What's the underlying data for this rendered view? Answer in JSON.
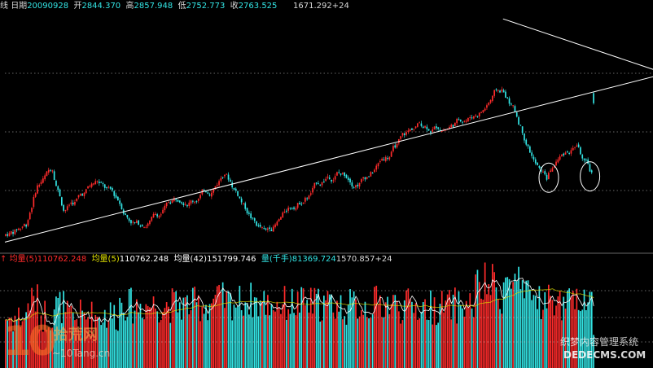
{
  "header": {
    "prefix": "线",
    "date_label": "日期",
    "date": "20090928",
    "open_label": "开",
    "open": "2844.370",
    "high_label": "高",
    "high": "2857.948",
    "low_label": "低",
    "low": "2752.773",
    "close_label": "收",
    "close": "2763.525",
    "peak_readout": "1671.292+24"
  },
  "volume_header": {
    "mark": "↑",
    "ma5_red_label": "均量(5)",
    "ma5_red": "110762.248",
    "ma5_label": "均量(5)",
    "ma5": "110762.248",
    "ma42_label": "均量(42)",
    "ma42": "151799.746",
    "vol_label": "量(千手)",
    "vol": "81369.724",
    "extra": "1570.857+24"
  },
  "colors": {
    "background": "#000000",
    "up": "#ff2b2b",
    "down": "#33e5e5",
    "trendline": "#ffffff",
    "grid": "#cccccc",
    "header_text": "#d9d9d9",
    "volume_ma5": "#ffffff",
    "volume_ma42": "#e0e000",
    "volume_vol": "#33e5e5"
  },
  "watermarks": {
    "left_big": "10",
    "left_cn": "拾荒网",
    "left_url": "~10Tang.cn",
    "right_cn": "织梦内容管理系统",
    "right_url": "DEDECMS.COM"
  },
  "chart_data": {
    "type": "candlestick",
    "title": "",
    "xlabel": "",
    "ylabel": "",
    "last_bar": {
      "date": "20090928",
      "open": 2844.37,
      "high": 2857.948,
      "low": 2752.773,
      "close": 2763.525
    },
    "peak_label": "1671.292+24",
    "ylim": [
      1600,
      3500
    ],
    "close_path_points": [
      [
        0,
        1700
      ],
      [
        12,
        1820
      ],
      [
        18,
        2150
      ],
      [
        26,
        2300
      ],
      [
        32,
        2050
      ],
      [
        40,
        2120
      ],
      [
        50,
        2250
      ],
      [
        58,
        2100
      ],
      [
        66,
        1950
      ],
      [
        72,
        1900
      ],
      [
        85,
        2050
      ],
      [
        98,
        2200
      ],
      [
        110,
        2350
      ],
      [
        118,
        2550
      ],
      [
        126,
        2400
      ],
      [
        134,
        2200
      ],
      [
        140,
        2100
      ],
      [
        150,
        2250
      ],
      [
        164,
        2450
      ],
      [
        178,
        2650
      ],
      [
        186,
        2600
      ],
      [
        196,
        2700
      ],
      [
        208,
        2900
      ],
      [
        220,
        3000
      ],
      [
        230,
        3050
      ],
      [
        238,
        3100
      ],
      [
        248,
        3200
      ],
      [
        256,
        3300
      ],
      [
        262,
        3420
      ],
      [
        266,
        3440
      ],
      [
        272,
        3300
      ],
      [
        280,
        3050
      ],
      [
        286,
        2850
      ],
      [
        290,
        2780
      ],
      [
        296,
        2930
      ],
      [
        302,
        3000
      ],
      [
        306,
        3050
      ],
      [
        310,
        2900
      ],
      [
        314,
        2763
      ]
    ],
    "trendlines": [
      {
        "name": "support",
        "from": [
          0,
          1650
        ],
        "to": [
          355,
          3010
        ]
      },
      {
        "name": "resistance",
        "from": [
          266,
          3440
        ],
        "to": [
          355,
          2990
        ]
      }
    ],
    "highlighted_bars": [
      290,
      312
    ],
    "volume": {
      "ma5": 110762.248,
      "ma42": 151799.746,
      "last_volume": 81369.724,
      "ylim": [
        0,
        260000
      ]
    }
  }
}
